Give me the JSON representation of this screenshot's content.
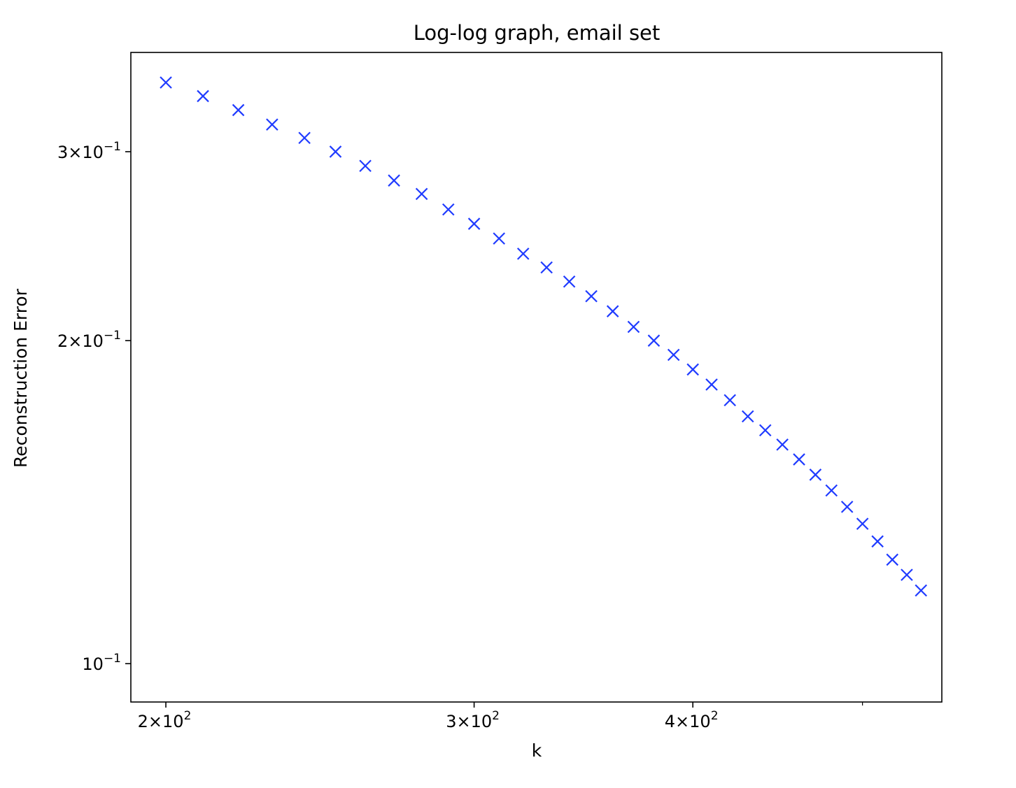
{
  "chart_data": {
    "type": "scatter",
    "title": "Log-log graph, email set",
    "xlabel": "k",
    "ylabel": "Reconstruction Error",
    "xscale": "log",
    "yscale": "log",
    "xlim": [
      191,
      555
    ],
    "ylim": [
      0.0921,
      0.3712
    ],
    "grid": false,
    "marker": "x",
    "series": [
      {
        "color": "#1f3bff",
        "x": [
          200,
          210,
          220,
          230,
          240,
          250,
          260,
          270,
          280,
          290,
          300,
          310,
          320,
          330,
          340,
          350,
          360,
          370,
          380,
          390,
          400,
          410,
          420,
          430,
          440,
          450,
          460,
          470,
          480,
          490,
          500,
          510,
          520,
          530,
          540
        ],
        "y": [
          0.348,
          0.338,
          0.328,
          0.318,
          0.309,
          0.3,
          0.291,
          0.282,
          0.274,
          0.265,
          0.257,
          0.249,
          0.241,
          0.234,
          0.227,
          0.22,
          0.213,
          0.206,
          0.2,
          0.194,
          0.188,
          0.182,
          0.176,
          0.17,
          0.165,
          0.16,
          0.155,
          0.15,
          0.145,
          0.14,
          0.135,
          0.13,
          0.125,
          0.121,
          0.117
        ]
      }
    ],
    "y_series_note_removed": true,
    "xticks": [
      {
        "value": 200,
        "base": "2×10",
        "exp": "2"
      },
      {
        "value": 300,
        "base": "3×10",
        "exp": "2"
      },
      {
        "value": 400,
        "base": "4×10",
        "exp": "2"
      }
    ],
    "xticks_minor": [
      500
    ],
    "yticks": [
      {
        "value": 0.3,
        "base": "3×10",
        "exp": "−1"
      },
      {
        "value": 0.2,
        "base": "2×10",
        "exp": "−1"
      },
      {
        "value": 0.1,
        "base": "10",
        "exp": "−1"
      }
    ]
  }
}
